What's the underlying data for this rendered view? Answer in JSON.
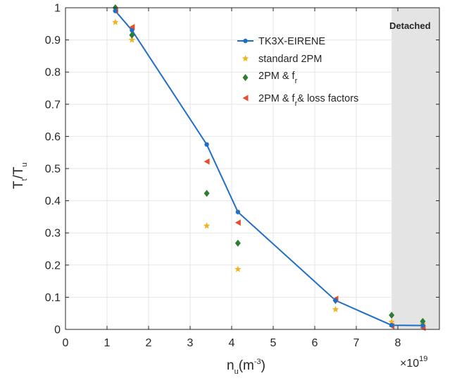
{
  "chart_data": {
    "type": "line",
    "xlim": [
      0,
      9
    ],
    "ylim": [
      0,
      1
    ],
    "x_ticks": [
      0,
      1,
      2,
      3,
      4,
      5,
      6,
      7,
      8
    ],
    "y_ticks": [
      0,
      0.1,
      0.2,
      0.3,
      0.4,
      0.5,
      0.6,
      0.7,
      0.8,
      0.9,
      1
    ],
    "x_tick_labels": [
      "0",
      "1",
      "2",
      "3",
      "4",
      "5",
      "6",
      "7",
      "8"
    ],
    "y_tick_labels": [
      "0",
      "0.1",
      "0.2",
      "0.3",
      "0.4",
      "0.5",
      "0.6",
      "0.7",
      "0.8",
      "0.9",
      "1"
    ],
    "x_multiplier": {
      "base": "×10",
      "exp": "19"
    },
    "xlabel": {
      "main": "n",
      "sub": "u",
      "paren": "(m",
      "sup": "-3",
      "close": ")"
    },
    "ylabel": {
      "t1": "T",
      "s1": "t",
      "mid": "/T",
      "s2": "u"
    },
    "grid": true,
    "legend_position": "top-right",
    "shaded_region": {
      "x_start": 7.85,
      "x_end": 9,
      "label": "Detached",
      "color": "#e4e4e4"
    },
    "series": [
      {
        "name": "TK3X-EIRENE",
        "marker": "circle",
        "line": true,
        "color": "#1f6fc7",
        "x": [
          1.2,
          1.6,
          3.4,
          4.15,
          6.5,
          7.85,
          8.6
        ],
        "y": [
          0.99,
          0.93,
          0.575,
          0.365,
          0.09,
          0.013,
          0.012
        ]
      },
      {
        "name": "standard 2PM",
        "marker": "star",
        "line": false,
        "color": "#f0b323",
        "x": [
          1.2,
          1.6,
          3.4,
          4.15,
          6.5,
          7.85,
          8.6
        ],
        "y": [
          0.955,
          0.9,
          0.322,
          0.187,
          0.062,
          0.023,
          0.016
        ]
      },
      {
        "name": "2PM & f_r",
        "legend_parts": {
          "text": "2PM & f",
          "sub": "r"
        },
        "marker": "diamond",
        "line": false,
        "color": "#2e7d32",
        "x": [
          1.2,
          1.6,
          3.4,
          4.15,
          6.5,
          7.85,
          8.6
        ],
        "y": [
          1.0,
          0.915,
          0.423,
          0.268,
          0.09,
          0.044,
          0.025
        ]
      },
      {
        "name": "2PM & f_r & loss factors",
        "legend_parts": {
          "text": "2PM & f",
          "sub": "r",
          "rest": "& loss factors"
        },
        "marker": "triangle-left",
        "line": false,
        "color": "#e5502e",
        "x": [
          1.2,
          1.6,
          3.4,
          4.15,
          6.5,
          7.85,
          8.6
        ],
        "y": [
          0.99,
          0.94,
          0.522,
          0.332,
          0.095,
          0.01,
          0.005
        ]
      }
    ]
  }
}
